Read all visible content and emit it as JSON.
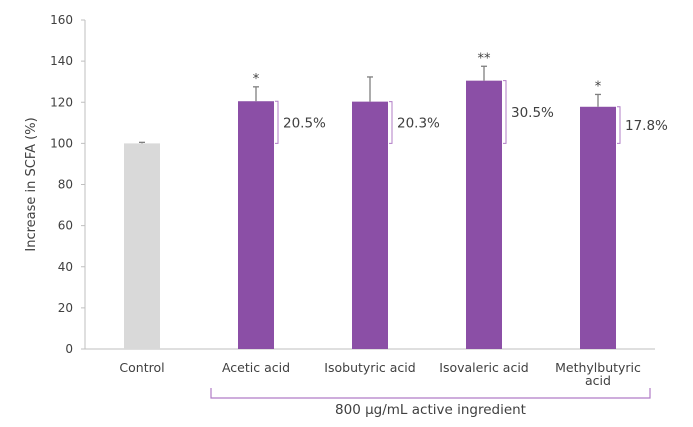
{
  "chart_data": {
    "type": "bar",
    "ylabel": "Increase in SCFA (%)",
    "xlabel": "",
    "ylim": [
      0,
      160
    ],
    "yticks": [
      0,
      20,
      40,
      60,
      80,
      100,
      120,
      140,
      160
    ],
    "grid": false,
    "categories": [
      {
        "lines": [
          "Control"
        ]
      },
      {
        "lines": [
          "Acetic acid"
        ]
      },
      {
        "lines": [
          "Isobutyric acid"
        ]
      },
      {
        "lines": [
          "Isovaleric acid"
        ]
      },
      {
        "lines": [
          "Methylbutyric",
          "acid"
        ]
      }
    ],
    "values": [
      100,
      120.5,
      120.3,
      130.5,
      117.8
    ],
    "errors": [
      0.5,
      7,
      12,
      7,
      6
    ],
    "significance": [
      "",
      "*",
      "",
      "**",
      "*"
    ],
    "increase_labels": [
      "",
      "20.5%",
      "20.3%",
      "30.5%",
      "17.8%"
    ],
    "group_label": "800 µg/mL active ingredient",
    "colors": {
      "control": "#d9d9d9",
      "treatment": "#8b4fa6",
      "bracket": "#b07cc6",
      "text": "#404040",
      "axis": "#bfbfbf",
      "error_bar": "#7f7f7f"
    }
  }
}
